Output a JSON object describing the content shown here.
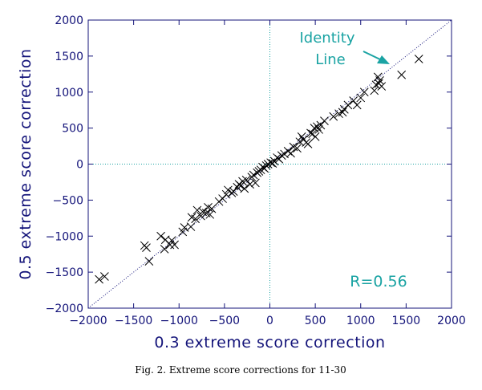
{
  "chart_data": {
    "type": "scatter",
    "xlabel": "0.3 extreme score correction",
    "ylabel": "0.5 extreme score correction",
    "xlim": [
      -2000,
      2000
    ],
    "ylim": [
      -2000,
      2000
    ],
    "xticks": [
      -2000,
      -1500,
      -1000,
      -500,
      0,
      500,
      1000,
      1500,
      2000
    ],
    "yticks": [
      -2000,
      -1500,
      -1000,
      -500,
      0,
      500,
      1000,
      1500,
      2000
    ],
    "grid": false,
    "zero_lines": true,
    "reference_line": {
      "label": "Identity Line",
      "slope": 1,
      "intercept": 0
    },
    "annotation": "R=0.56",
    "marker": "x",
    "colors": {
      "axes": "#14147a",
      "annotation": "#1aa3a3",
      "markers": "#000000",
      "reference": "#14147a"
    },
    "points": [
      [
        -1880,
        -1600
      ],
      [
        -1820,
        -1560
      ],
      [
        -1380,
        -1130
      ],
      [
        -1360,
        -1160
      ],
      [
        -1330,
        -1350
      ],
      [
        -1200,
        -1000
      ],
      [
        -1160,
        -1180
      ],
      [
        -1150,
        -1050
      ],
      [
        -1100,
        -1120
      ],
      [
        -1080,
        -1060
      ],
      [
        -1050,
        -1120
      ],
      [
        -960,
        -940
      ],
      [
        -940,
        -880
      ],
      [
        -870,
        -870
      ],
      [
        -860,
        -740
      ],
      [
        -820,
        -760
      ],
      [
        -800,
        -640
      ],
      [
        -760,
        -720
      ],
      [
        -740,
        -660
      ],
      [
        -700,
        -680
      ],
      [
        -680,
        -600
      ],
      [
        -660,
        -700
      ],
      [
        -640,
        -620
      ],
      [
        -560,
        -520
      ],
      [
        -520,
        -480
      ],
      [
        -480,
        -420
      ],
      [
        -460,
        -360
      ],
      [
        -420,
        -400
      ],
      [
        -400,
        -380
      ],
      [
        -360,
        -320
      ],
      [
        -340,
        -280
      ],
      [
        -320,
        -300
      ],
      [
        -300,
        -240
      ],
      [
        -280,
        -340
      ],
      [
        -260,
        -220
      ],
      [
        -220,
        -280
      ],
      [
        -200,
        -180
      ],
      [
        -180,
        -150
      ],
      [
        -160,
        -260
      ],
      [
        -140,
        -120
      ],
      [
        -120,
        -100
      ],
      [
        -100,
        -80
      ],
      [
        -80,
        -40
      ],
      [
        -60,
        -60
      ],
      [
        -40,
        -20
      ],
      [
        -20,
        0
      ],
      [
        10,
        20
      ],
      [
        30,
        10
      ],
      [
        50,
        40
      ],
      [
        80,
        90
      ],
      [
        100,
        70
      ],
      [
        130,
        120
      ],
      [
        160,
        140
      ],
      [
        200,
        180
      ],
      [
        230,
        150
      ],
      [
        260,
        240
      ],
      [
        300,
        220
      ],
      [
        330,
        310
      ],
      [
        350,
        380
      ],
      [
        370,
        340
      ],
      [
        400,
        300
      ],
      [
        420,
        280
      ],
      [
        450,
        430
      ],
      [
        470,
        420
      ],
      [
        490,
        500
      ],
      [
        500,
        380
      ],
      [
        520,
        520
      ],
      [
        540,
        480
      ],
      [
        560,
        540
      ],
      [
        600,
        600
      ],
      [
        700,
        660
      ],
      [
        760,
        700
      ],
      [
        800,
        720
      ],
      [
        820,
        760
      ],
      [
        860,
        820
      ],
      [
        920,
        880
      ],
      [
        960,
        820
      ],
      [
        1000,
        920
      ],
      [
        1040,
        1000
      ],
      [
        1150,
        1020
      ],
      [
        1170,
        1100
      ],
      [
        1190,
        1210
      ],
      [
        1200,
        1120
      ],
      [
        1210,
        1160
      ],
      [
        1230,
        1080
      ],
      [
        1450,
        1240
      ],
      [
        1640,
        1460
      ]
    ]
  },
  "caption": "Fig. 2. Extreme score corrections for 11-30"
}
